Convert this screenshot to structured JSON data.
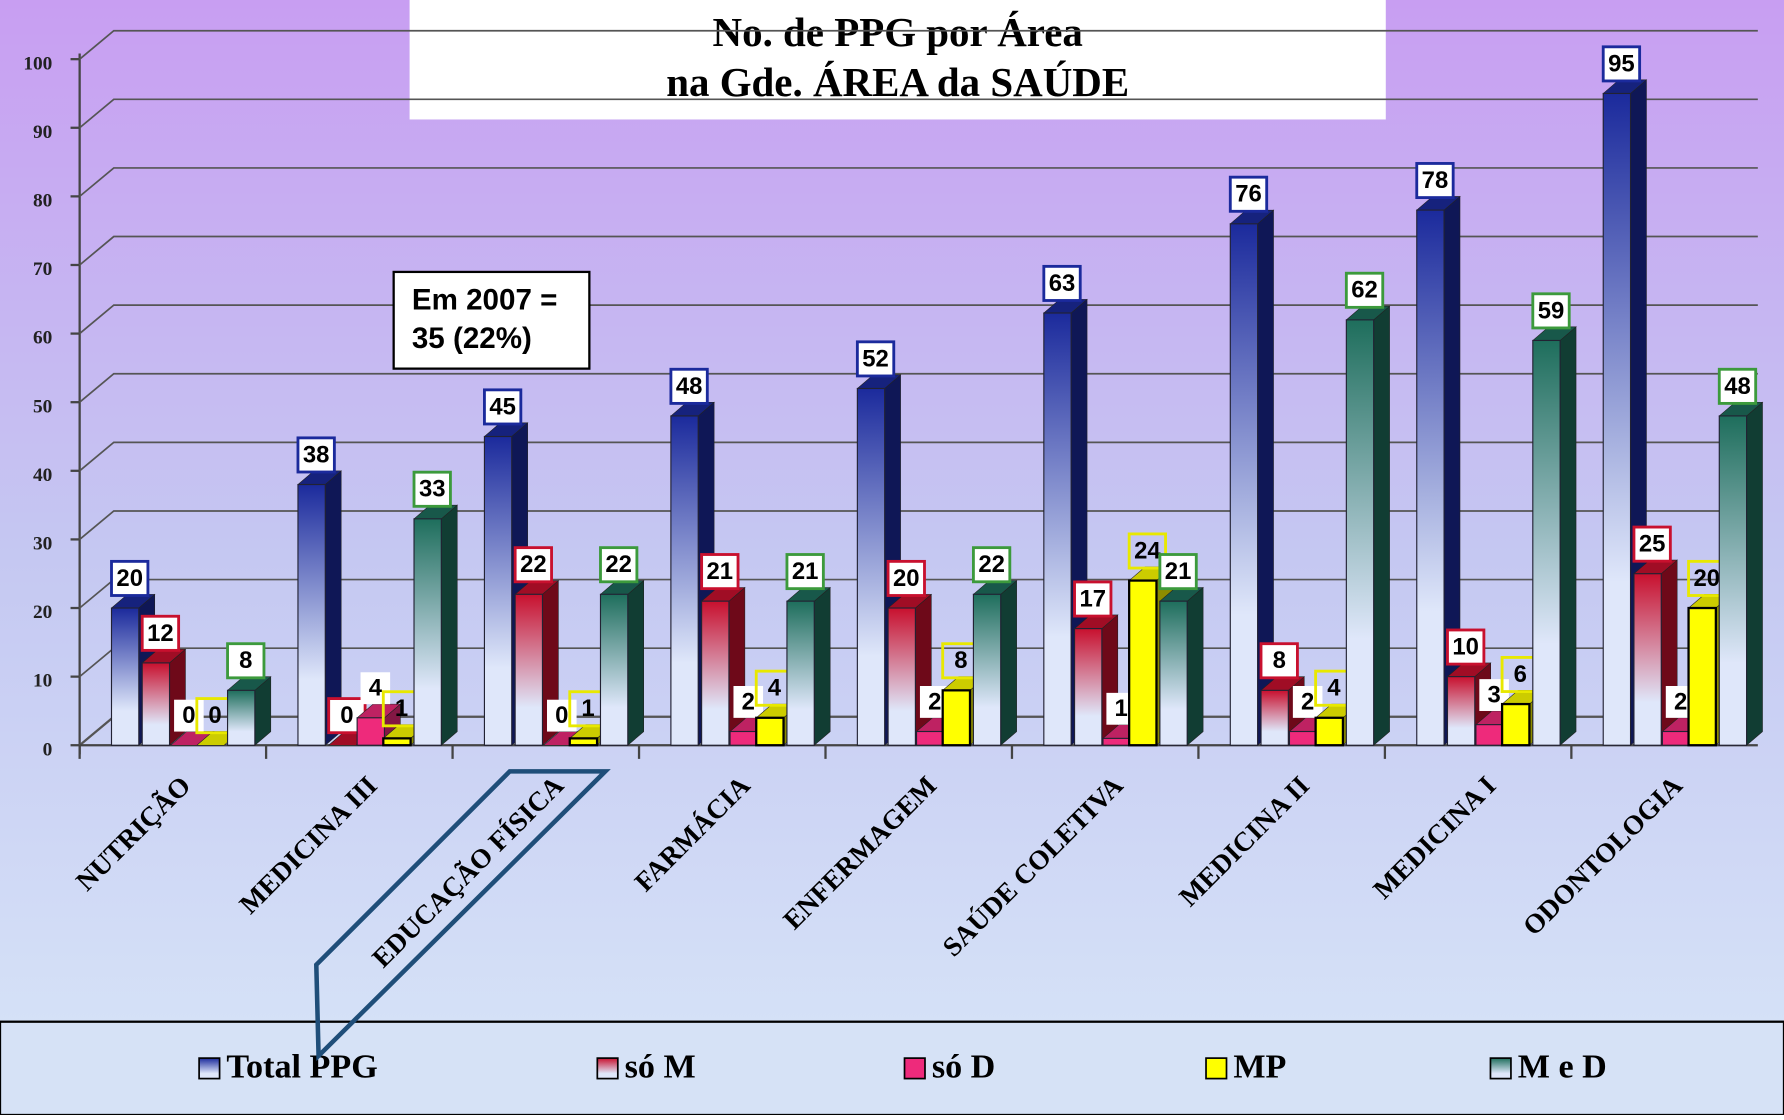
{
  "chart_data": {
    "type": "bar3d",
    "title": [
      "No. de PPG por Área",
      "na Gde. ÁREA da SAÚDE"
    ],
    "annotation": [
      "Em 2007 =",
      "35 (22%)"
    ],
    "categories": [
      "NUTRIÇÃO",
      "MEDICINA  III",
      "EDUCAÇÃO FÍSICA",
      "FARMÁCIA",
      "ENFERMAGEM",
      "SAÚDE COLETIVA",
      "MEDICINA  II",
      "MEDICINA  I",
      "ODONTOLOGIA"
    ],
    "series": [
      {
        "name": "Total PPG",
        "color": "#1b2a9c",
        "values": [
          20,
          38,
          45,
          48,
          52,
          63,
          76,
          78,
          95
        ]
      },
      {
        "name": "só M",
        "color": "#c8102e",
        "values": [
          12,
          0,
          22,
          21,
          20,
          17,
          8,
          10,
          25
        ]
      },
      {
        "name": "só D",
        "color": "#ee2a7b",
        "values": [
          0,
          4,
          0,
          2,
          2,
          1,
          2,
          3,
          2
        ]
      },
      {
        "name": "MP",
        "color": "#ffff00",
        "values": [
          0,
          1,
          1,
          4,
          8,
          24,
          4,
          6,
          20
        ]
      },
      {
        "name": "M e D",
        "color": "#1e6e5c",
        "values": [
          8,
          33,
          22,
          21,
          22,
          21,
          62,
          59,
          48
        ]
      }
    ],
    "ylim": [
      0,
      100
    ],
    "yticks": [
      0,
      10,
      20,
      30,
      40,
      50,
      60,
      70,
      80,
      90,
      100
    ],
    "grid": true,
    "legend": "bottom"
  }
}
